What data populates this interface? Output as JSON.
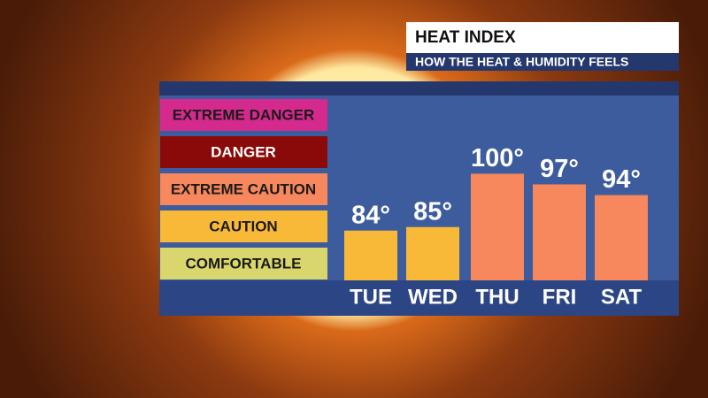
{
  "chart_data": {
    "type": "bar",
    "title": "HEAT INDEX",
    "subtitle": "HOW THE HEAT & HUMIDITY FEELS",
    "levels": [
      {
        "name": "EXTREME DANGER",
        "color": "#d42a8e"
      },
      {
        "name": "DANGER",
        "color": "#8a0a0a"
      },
      {
        "name": "EXTREME CAUTION",
        "color": "#f7875c"
      },
      {
        "name": "CAUTION",
        "color": "#f9b938"
      },
      {
        "name": "COMFORTABLE",
        "color": "#d8d66c"
      }
    ],
    "categories": [
      "TUE",
      "WED",
      "THU",
      "FRI",
      "SAT"
    ],
    "values": [
      84,
      85,
      100,
      97,
      94
    ],
    "value_labels": [
      "84°",
      "85°",
      "100°",
      "97°",
      "94°"
    ],
    "colors": [
      "#f9b938",
      "#f9b938",
      "#f7875c",
      "#f7875c",
      "#f7875c"
    ],
    "ylim": [
      70,
      122
    ]
  }
}
